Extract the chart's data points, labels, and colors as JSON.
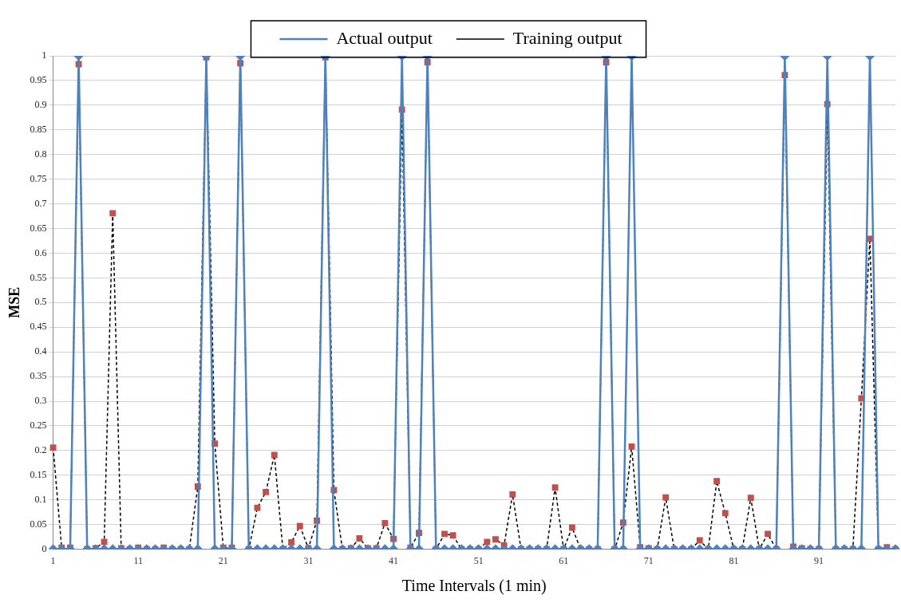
{
  "chart_data": {
    "type": "line",
    "xlabel": "Time Intervals (1 min)",
    "ylabel": "MSE",
    "categories": [
      "1",
      null,
      null,
      null,
      null,
      null,
      null,
      null,
      null,
      null,
      "11",
      null,
      null,
      null,
      null,
      null,
      null,
      null,
      null,
      null,
      "21",
      null,
      null,
      null,
      null,
      null,
      null,
      null,
      null,
      null,
      "31",
      null,
      null,
      null,
      null,
      null,
      null,
      null,
      null,
      null,
      "41",
      null,
      null,
      null,
      null,
      null,
      null,
      null,
      null,
      null,
      "51",
      null,
      null,
      null,
      null,
      null,
      null,
      null,
      null,
      null,
      "61",
      null,
      null,
      null,
      null,
      null,
      null,
      null,
      null,
      null,
      "71",
      null,
      null,
      null,
      null,
      null,
      null,
      null,
      null,
      null,
      "81",
      null,
      null,
      null,
      null,
      null,
      null,
      null,
      null,
      null,
      "91",
      null,
      null,
      null,
      null,
      null,
      null,
      null,
      null,
      null
    ],
    "series": [
      {
        "name": "Actual output",
        "color": "#4f81bd",
        "marker": "diamond",
        "line_style": "solid",
        "values": [
          0,
          0,
          0,
          1,
          0,
          0,
          0,
          0,
          0,
          0,
          0,
          0,
          0,
          0,
          0,
          0,
          0,
          0,
          1,
          0,
          0,
          0,
          1,
          0,
          0,
          0,
          0,
          0,
          0,
          0,
          0,
          0,
          1,
          0,
          0,
          0,
          0,
          0,
          0,
          0,
          0,
          1,
          0,
          0,
          1,
          0,
          0,
          0,
          0,
          0,
          0,
          0,
          0,
          0,
          0,
          0,
          0,
          0,
          0,
          0,
          0,
          0,
          0,
          0,
          0,
          1,
          0,
          0,
          1,
          0,
          0,
          0,
          0,
          0,
          0,
          0,
          0,
          0,
          0,
          0,
          0,
          0,
          0,
          0,
          0,
          0,
          1,
          0,
          0,
          0,
          0,
          1,
          0,
          0,
          0,
          0,
          1,
          0,
          0,
          0
        ]
      },
      {
        "name": "Training output",
        "color": "#c0504d",
        "marker": "square",
        "line_style": "dashed",
        "values": [
          0.206,
          0.003,
          0.003,
          0.983,
          0,
          0.002,
          0.015,
          0.681,
          0.002,
          0,
          0.003,
          0,
          0,
          0.003,
          0,
          0,
          0,
          0.127,
          0.997,
          0.214,
          0.003,
          0.003,
          0.985,
          0,
          0.084,
          0.116,
          0.191,
          0,
          0.014,
          0.047,
          0.002,
          0.058,
          0.997,
          0.12,
          0,
          0.002,
          0.022,
          0.002,
          0.002,
          0.053,
          0.021,
          0.891,
          0.003,
          0.033,
          0.987,
          0,
          0.031,
          0.028,
          0,
          0,
          0,
          0.015,
          0.02,
          0.008,
          0.111,
          0,
          0,
          0,
          0,
          0.125,
          0,
          0.044,
          0,
          0,
          0,
          0.987,
          0,
          0.054,
          0.208,
          0.004,
          0.002,
          0,
          0.105,
          0,
          0,
          0,
          0.018,
          0,
          0.138,
          0.073,
          0,
          0,
          0.104,
          0,
          0.031,
          0,
          0.961,
          0.005,
          0.002,
          0,
          0,
          0.902,
          0,
          0,
          0,
          0.306,
          0.629,
          0,
          0.004,
          0
        ]
      }
    ],
    "ylim": [
      0,
      1
    ],
    "yticks": [
      0,
      0.05,
      0.1,
      0.15,
      0.2,
      0.25,
      0.3,
      0.35,
      0.4,
      0.45,
      0.5,
      0.55,
      0.6,
      0.65,
      0.7,
      0.75,
      0.8,
      0.85,
      0.9,
      0.95,
      1
    ],
    "grid": "y",
    "legend": "top"
  }
}
